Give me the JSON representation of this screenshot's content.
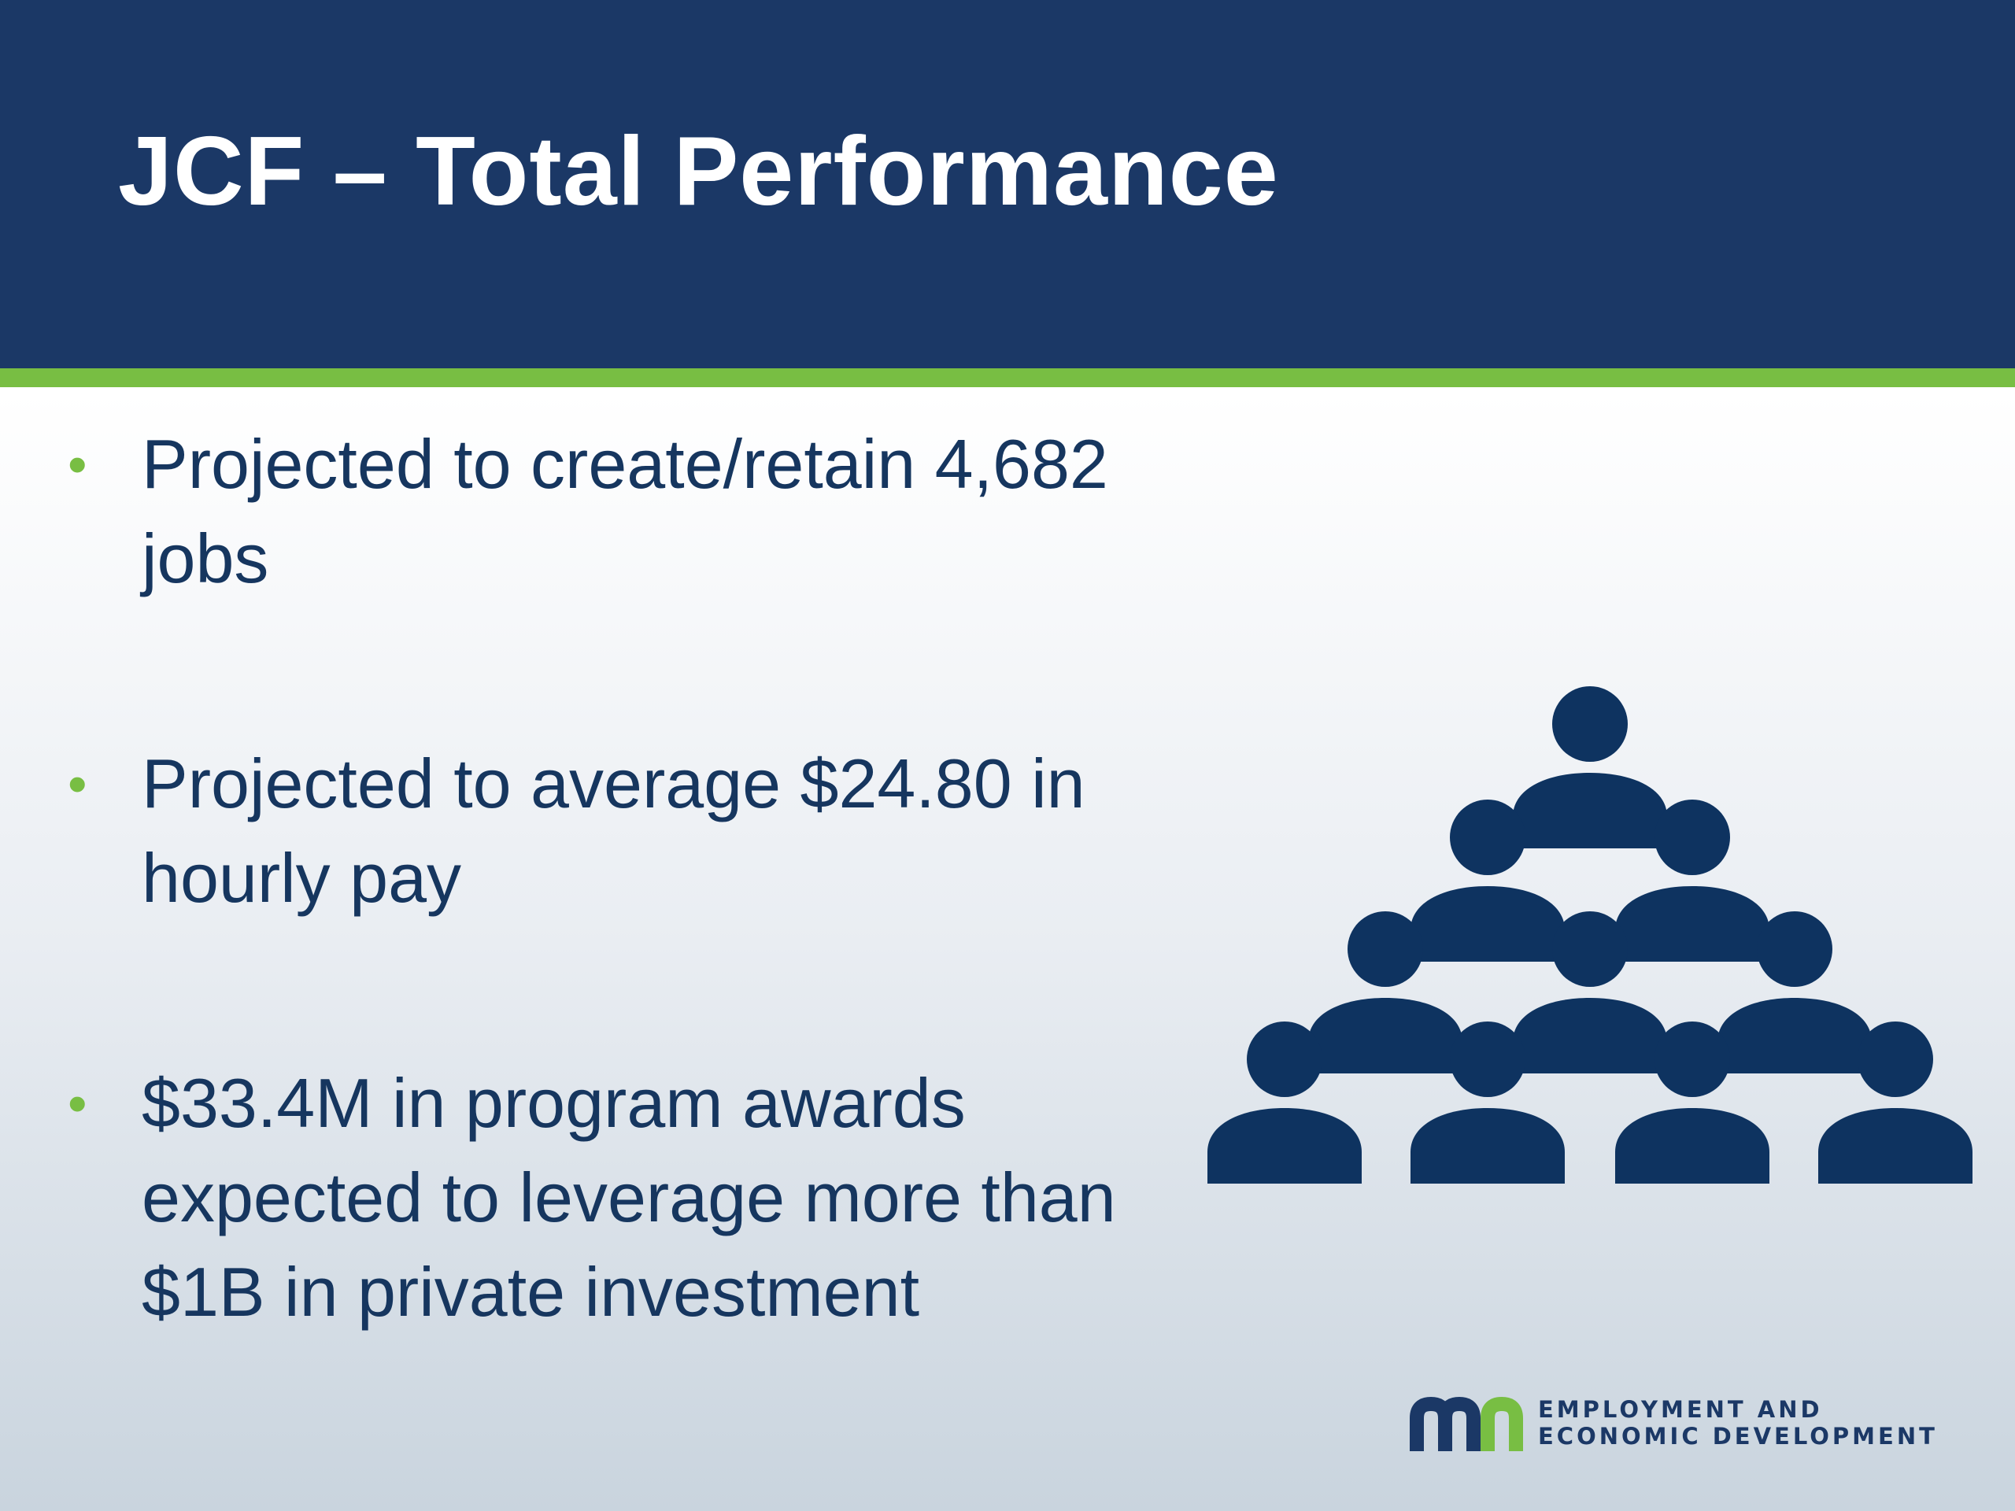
{
  "slide": {
    "title": "JCF – Total Performance",
    "colors": {
      "header_band": "#1b3866",
      "accent": "#78be43",
      "text": "#16365f",
      "icon": "#0e3360"
    },
    "bullets": [
      {
        "marker": "•",
        "text": "Projected to create/retain 4,682 jobs"
      },
      {
        "marker": "•",
        "text": "Projected to average $24.80 in hourly pay"
      },
      {
        "marker": "•",
        "text": "$33.4M in program awards expected to leverage more than $1B in private investment"
      }
    ],
    "graphic": {
      "icon": "people-pyramid-icon"
    },
    "logo": {
      "mark_icon": "mn-logo-icon",
      "line1": "EMPLOYMENT AND",
      "line2": "ECONOMIC DEVELOPMENT"
    }
  }
}
